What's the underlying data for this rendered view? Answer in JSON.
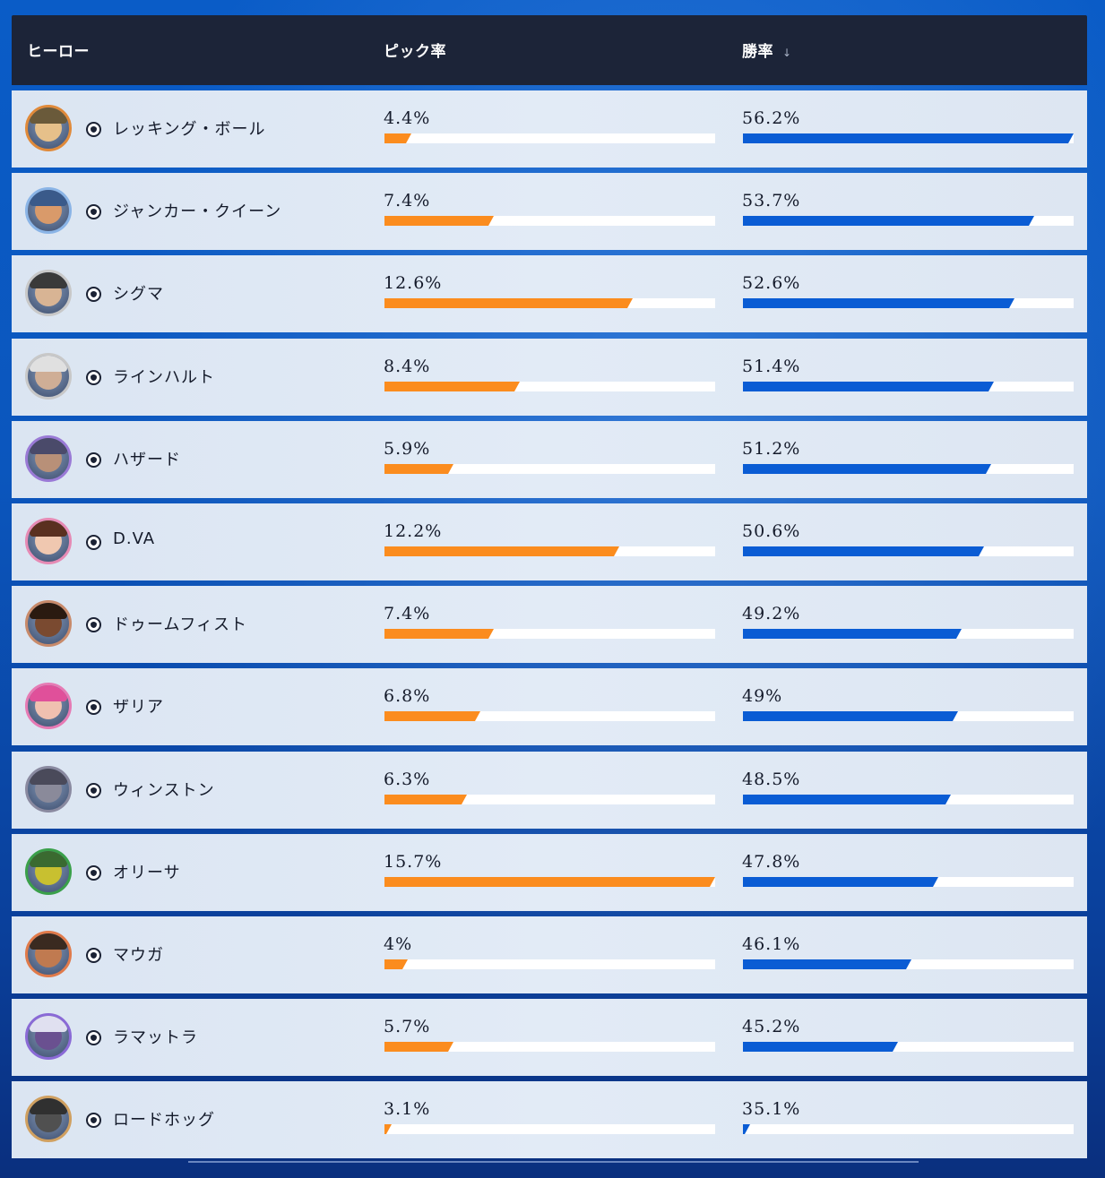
{
  "header": {
    "hero_label": "ヒーロー",
    "pick_label": "ピック率",
    "win_label": "勝率",
    "sort_icon": "↓"
  },
  "colors": {
    "pick_bar": "#fb8c1e",
    "win_bar": "#0a5cd4",
    "header_bg": "#1c2438",
    "row_bg": "#dfe8f4"
  },
  "scale": {
    "pick_max": 15.7,
    "win_min": 35.1,
    "win_max": 56.2
  },
  "rows": [
    {
      "name": "レッキング・ボール",
      "pick": "4.4%",
      "win": "56.2%",
      "pick_fraction": 0.08,
      "win_fraction": 1.0,
      "avatar_border": "#e08a3a",
      "face": "#e6c08a",
      "hair": "#6a5a3a"
    },
    {
      "name": "ジャンカー・クイーン",
      "pick": "7.4%",
      "win": "53.7%",
      "pick_fraction": 0.33,
      "win_fraction": 0.88,
      "avatar_border": "#8ab4e6",
      "face": "#d99a6a",
      "hair": "#3a5a8a"
    },
    {
      "name": "シグマ",
      "pick": "12.6%",
      "win": "52.6%",
      "pick_fraction": 0.75,
      "win_fraction": 0.82,
      "avatar_border": "#c8c8c8",
      "face": "#d8b494",
      "hair": "#3a3a3a"
    },
    {
      "name": "ラインハルト",
      "pick": "8.4%",
      "win": "51.4%",
      "pick_fraction": 0.41,
      "win_fraction": 0.76,
      "avatar_border": "#c8c8c8",
      "face": "#cfae96",
      "hair": "#e0e0e0"
    },
    {
      "name": "ハザード",
      "pick": "5.9%",
      "win": "51.2%",
      "pick_fraction": 0.21,
      "win_fraction": 0.75,
      "avatar_border": "#9a7ad6",
      "face": "#b89078",
      "hair": "#4a4a6a"
    },
    {
      "name": "D.VA",
      "pick": "12.2%",
      "win": "50.6%",
      "pick_fraction": 0.71,
      "win_fraction": 0.73,
      "avatar_border": "#e68ab4",
      "face": "#f0c8b0",
      "hair": "#5a3020"
    },
    {
      "name": "ドゥームフィスト",
      "pick": "7.4%",
      "win": "49.2%",
      "pick_fraction": 0.33,
      "win_fraction": 0.66,
      "avatar_border": "#c88a6a",
      "face": "#7a4a30",
      "hair": "#2a1a10"
    },
    {
      "name": "ザリア",
      "pick": "6.8%",
      "win": "49%",
      "pick_fraction": 0.29,
      "win_fraction": 0.65,
      "avatar_border": "#e67ab4",
      "face": "#f0c0b0",
      "hair": "#e0509a"
    },
    {
      "name": "ウィンストン",
      "pick": "6.3%",
      "win": "48.5%",
      "pick_fraction": 0.25,
      "win_fraction": 0.63,
      "avatar_border": "#8a8aa0",
      "face": "#8a8a9a",
      "hair": "#4a4a5a"
    },
    {
      "name": "オリーサ",
      "pick": "15.7%",
      "win": "47.8%",
      "pick_fraction": 1.0,
      "win_fraction": 0.59,
      "avatar_border": "#3aa04a",
      "face": "#c8c030",
      "hair": "#3a6a30"
    },
    {
      "name": "マウガ",
      "pick": "4%",
      "win": "46.1%",
      "pick_fraction": 0.07,
      "win_fraction": 0.51,
      "avatar_border": "#e07a4a",
      "face": "#c07a50",
      "hair": "#3a2a20"
    },
    {
      "name": "ラマットラ",
      "pick": "5.7%",
      "win": "45.2%",
      "pick_fraction": 0.21,
      "win_fraction": 0.47,
      "avatar_border": "#8a6ad6",
      "face": "#6a5090",
      "hair": "#e0e0f0"
    },
    {
      "name": "ロードホッグ",
      "pick": "3.1%",
      "win": "35.1%",
      "pick_fraction": 0.02,
      "win_fraction": 0.02,
      "avatar_border": "#d0a060",
      "face": "#505050",
      "hair": "#303030"
    }
  ]
}
